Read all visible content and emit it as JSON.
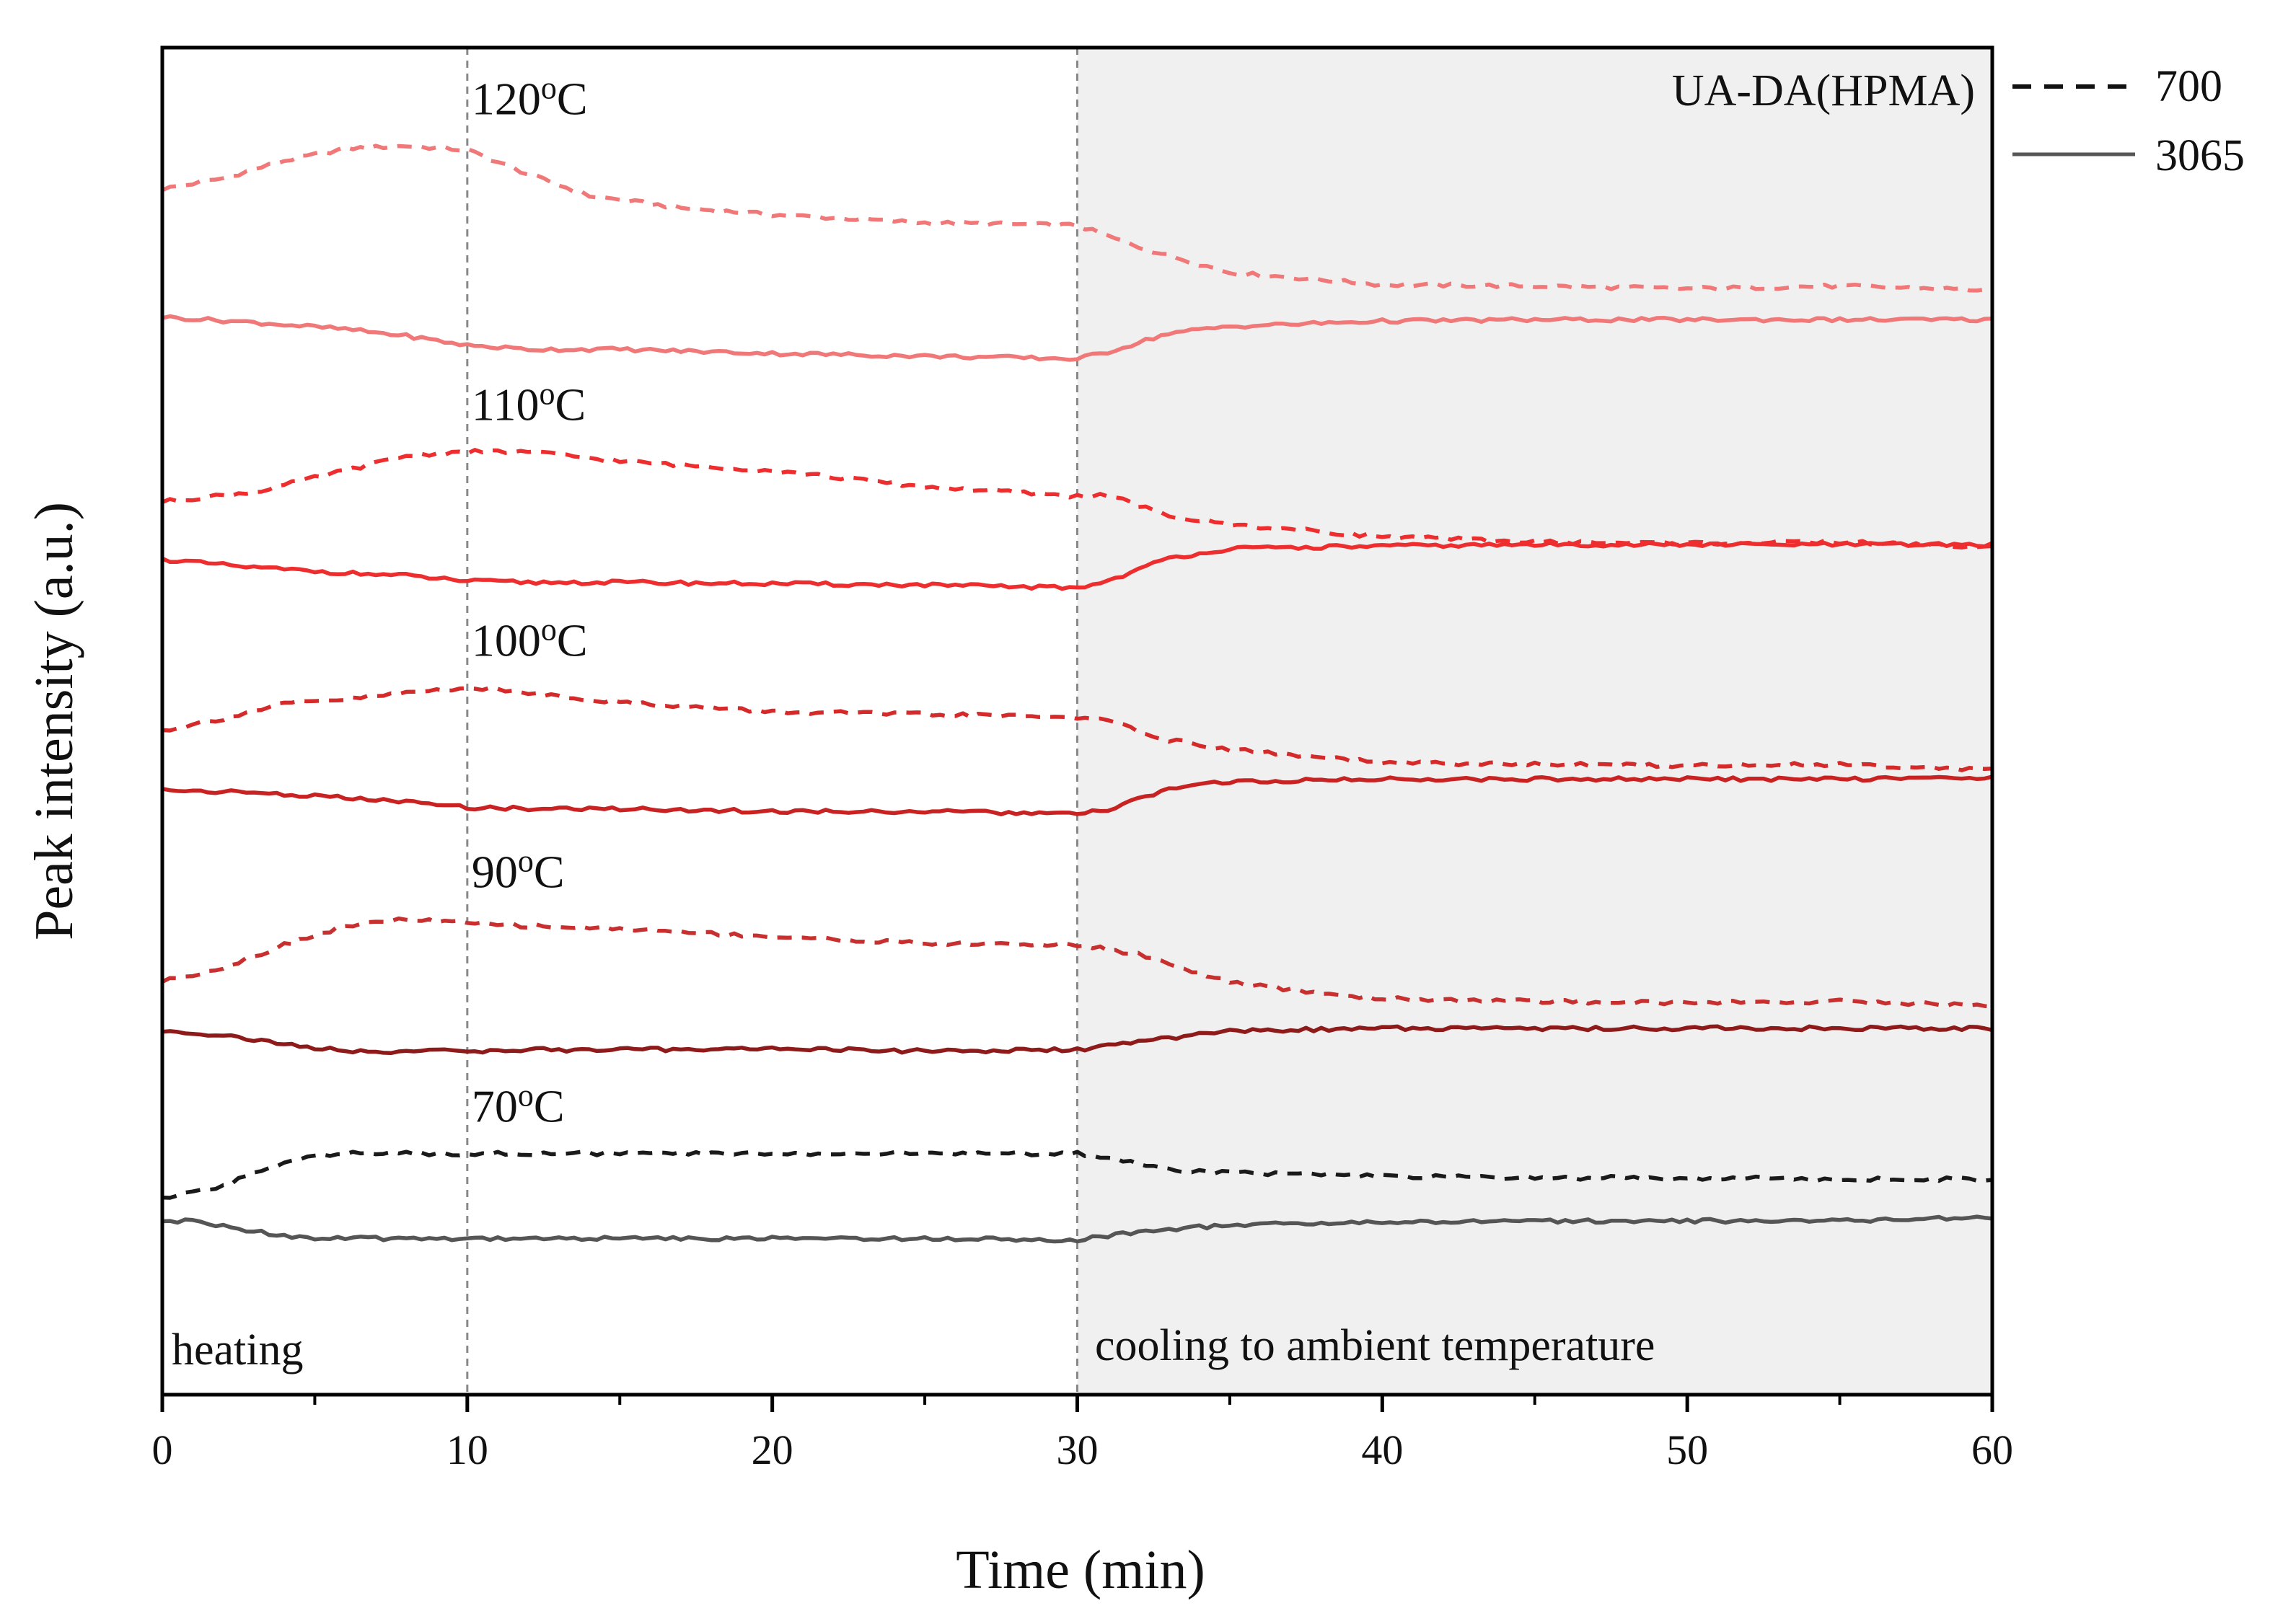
{
  "chart_data": {
    "type": "line",
    "xlabel": "Time (min)",
    "ylabel": "Peak intensity (a.u.)",
    "xlim": [
      0,
      60
    ],
    "ylim": [
      0,
      100
    ],
    "x_ticks": [
      0,
      10,
      20,
      30,
      40,
      50,
      60
    ],
    "x_tick_labels": [
      "0",
      "10",
      "20",
      "30",
      "40",
      "50",
      "60"
    ],
    "minor_x_ticks": [
      5,
      15,
      25,
      35,
      45,
      55
    ],
    "y_ticks_shown": false,
    "vlines": [
      10,
      30
    ],
    "shaded_region": {
      "x_start": 30,
      "x_end": 60,
      "color": "#f0f0f0",
      "label": "cooling to ambient temperature"
    },
    "heating_label": "heating",
    "inset_title": "UA-DA(HPMA)",
    "legend": [
      {
        "label": "700",
        "style": "dashed"
      },
      {
        "label": "3065",
        "style": "solid"
      }
    ],
    "groups": [
      {
        "temperature": "120",
        "unit": "oC",
        "color_dashed": "#f07878",
        "color_solid": "#f07878",
        "series": [
          {
            "name": "700",
            "style": "dashed",
            "x": [
              0,
              2,
              4,
              6,
              8,
              10,
              12,
              14,
              17,
              20,
              25,
              30,
              32,
              35,
              40,
              45,
              50,
              55,
              60
            ],
            "y": [
              89.5,
              90.3,
              91.6,
              92.5,
              92.7,
              92.4,
              90.6,
              89.0,
              88.1,
              87.6,
              87.0,
              86.8,
              85.2,
              83.3,
              82.4,
              82.3,
              82.1,
              82.3,
              82.0
            ]
          },
          {
            "name": "3065",
            "style": "solid",
            "x": [
              0,
              3,
              6,
              8,
              10,
              12,
              15,
              20,
              25,
              30,
              31,
              33,
              35,
              40,
              45,
              50,
              55,
              60
            ],
            "y": [
              80.0,
              79.6,
              79.1,
              78.6,
              77.9,
              77.6,
              77.6,
              77.3,
              77.1,
              76.9,
              77.4,
              78.8,
              79.3,
              79.7,
              79.8,
              79.8,
              79.8,
              79.8
            ]
          }
        ]
      },
      {
        "temperature": "110",
        "unit": "oC",
        "color_dashed": "#ee2e2e",
        "color_solid": "#ee2e2e",
        "series": [
          {
            "name": "700",
            "style": "dashed",
            "x": [
              0,
              3,
              6,
              8,
              10,
              12,
              15,
              20,
              25,
              30,
              31,
              33,
              35,
              40,
              45,
              50,
              55,
              60
            ],
            "y": [
              66.3,
              67.0,
              68.6,
              69.7,
              70.0,
              70.0,
              69.3,
              68.6,
              67.4,
              66.7,
              66.8,
              65.2,
              64.6,
              63.7,
              63.3,
              63.2,
              63.3,
              62.9
            ]
          },
          {
            "name": "3065",
            "style": "solid",
            "x": [
              0,
              3,
              6,
              8,
              10,
              12,
              15,
              20,
              25,
              30,
              31,
              33,
              35,
              40,
              45,
              50,
              55,
              60
            ],
            "y": [
              62.0,
              61.4,
              61.0,
              60.8,
              60.4,
              60.3,
              60.3,
              60.2,
              60.1,
              59.9,
              60.4,
              62.1,
              62.8,
              63.0,
              63.1,
              63.1,
              63.1,
              63.1
            ]
          }
        ]
      },
      {
        "temperature": "100",
        "unit": "oC",
        "color_dashed": "#d42a2a",
        "color_solid": "#c82222",
        "series": [
          {
            "name": "700",
            "style": "dashed",
            "x": [
              0,
              2,
              4,
              6,
              8,
              10,
              12,
              15,
              20,
              25,
              30,
              31,
              33,
              35,
              40,
              45,
              50,
              55,
              60
            ],
            "y": [
              49.3,
              50.2,
              51.3,
              51.6,
              52.1,
              52.5,
              52.1,
              51.4,
              50.7,
              50.5,
              50.3,
              50.0,
              48.6,
              47.9,
              46.9,
              46.8,
              46.7,
              46.8,
              46.4
            ]
          },
          {
            "name": "3065",
            "style": "solid",
            "x": [
              0,
              3,
              6,
              8,
              10,
              12,
              15,
              20,
              25,
              30,
              31,
              33,
              35,
              40,
              45,
              50,
              55,
              60
            ],
            "y": [
              44.9,
              44.7,
              44.3,
              44.0,
              43.6,
              43.5,
              43.5,
              43.3,
              43.3,
              43.1,
              43.4,
              45.0,
              45.5,
              45.7,
              45.7,
              45.7,
              45.7,
              45.8
            ]
          }
        ]
      },
      {
        "temperature": "90",
        "unit": "oC",
        "color_dashed": "#c83030",
        "color_solid": "#8e1a1a",
        "series": [
          {
            "name": "700",
            "style": "dashed",
            "x": [
              0,
              2,
              4,
              6,
              8,
              10,
              12,
              15,
              20,
              25,
              30,
              32,
              35,
              38,
              40,
              45,
              50,
              55,
              60
            ],
            "y": [
              30.7,
              31.7,
              33.4,
              34.8,
              35.3,
              35.0,
              34.8,
              34.6,
              34.0,
              33.5,
              33.4,
              32.7,
              30.6,
              29.8,
              29.4,
              29.2,
              29.1,
              29.2,
              28.9
            ]
          },
          {
            "name": "3065",
            "style": "solid",
            "x": [
              0,
              2,
              4,
              6,
              8,
              10,
              12,
              15,
              20,
              25,
              30,
              32,
              35,
              40,
              45,
              50,
              55,
              60
            ],
            "y": [
              27.0,
              26.7,
              26.0,
              25.5,
              25.5,
              25.5,
              25.6,
              25.6,
              25.7,
              25.5,
              25.6,
              26.2,
              27.0,
              27.2,
              27.2,
              27.2,
              27.2,
              27.2
            ]
          }
        ]
      },
      {
        "temperature": "70",
        "unit": "oC",
        "color_dashed": "#1a1a1a",
        "color_solid": "#555555",
        "series": [
          {
            "name": "700",
            "style": "dashed",
            "x": [
              0,
              2,
              4,
              5,
              6,
              10,
              15,
              20,
              25,
              30,
              31,
              33,
              35,
              40,
              45,
              50,
              55,
              60
            ],
            "y": [
              14.5,
              15.5,
              17.3,
              17.8,
              17.9,
              17.9,
              17.9,
              17.9,
              17.9,
              17.9,
              17.6,
              16.7,
              16.5,
              16.2,
              16.1,
              16.1,
              16.0,
              16.0
            ]
          },
          {
            "name": "3065",
            "style": "solid",
            "x": [
              0,
              1,
              2,
              4,
              5,
              8,
              10,
              15,
              20,
              25,
              30,
              32,
              35,
              40,
              45,
              50,
              55,
              60
            ],
            "y": [
              12.8,
              12.9,
              12.5,
              11.8,
              11.6,
              11.6,
              11.6,
              11.6,
              11.6,
              11.6,
              11.5,
              12.1,
              12.6,
              12.8,
              12.9,
              12.9,
              12.9,
              13.2
            ]
          }
        ]
      }
    ]
  }
}
